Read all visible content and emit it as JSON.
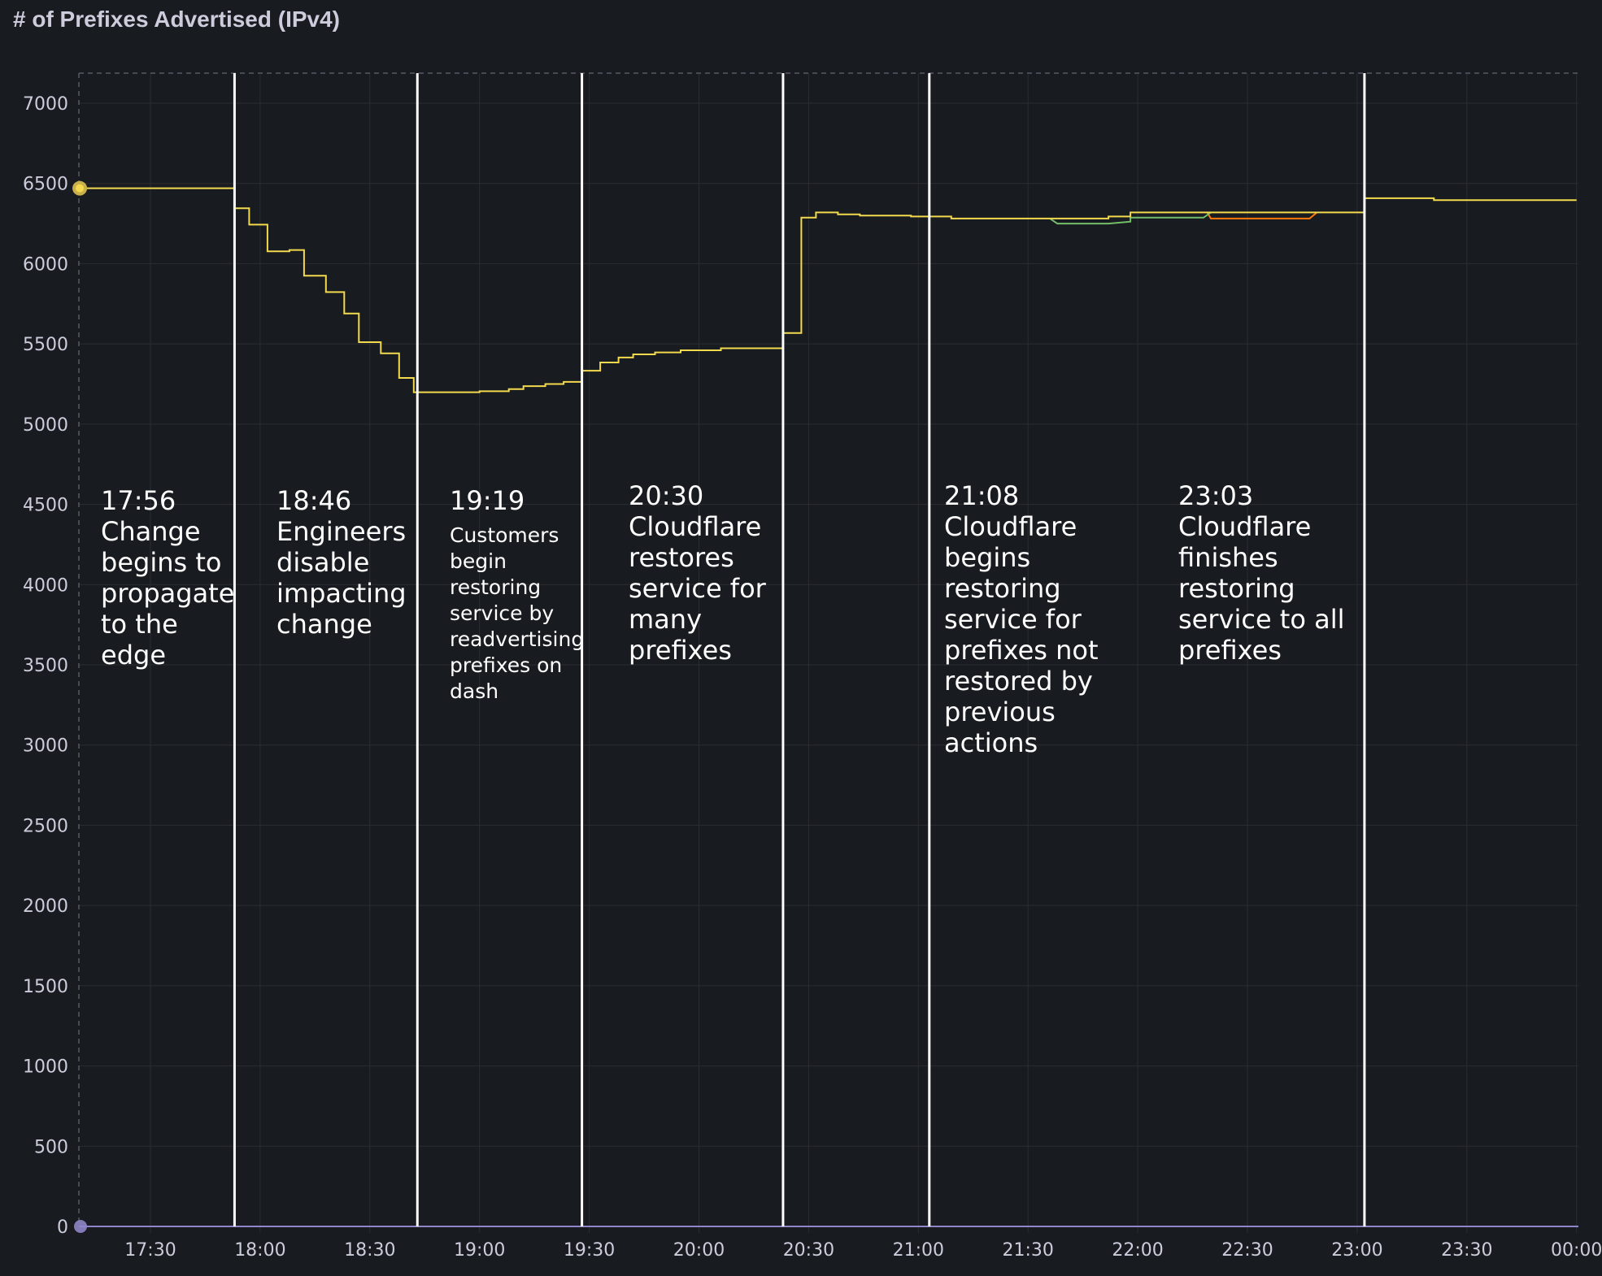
{
  "chart_data": {
    "type": "line",
    "title": "# of Prefixes Advertised (IPv4)",
    "xlabel": "",
    "ylabel": "",
    "ylim": [
      0,
      7200
    ],
    "xlim": [
      "17:10",
      "00:00"
    ],
    "grid": true,
    "y_ticks": [
      "0",
      "500",
      "1000",
      "1500",
      "2000",
      "2500",
      "3000",
      "3500",
      "4000",
      "4500",
      "5000",
      "5500",
      "6000",
      "6500",
      "7000"
    ],
    "x_ticks": [
      "17:30",
      "18:00",
      "18:30",
      "19:00",
      "19:30",
      "20:00",
      "20:30",
      "21:00",
      "21:30",
      "22:00",
      "22:30",
      "23:00",
      "23:30",
      "00:00"
    ],
    "series": [
      {
        "color": "#f2d94e",
        "points": [
          [
            "17:10",
            6470
          ],
          [
            "17:53",
            6470
          ],
          [
            "17:53",
            6345
          ],
          [
            "17:57",
            6345
          ],
          [
            "17:57",
            6243
          ],
          [
            "18:02",
            6243
          ],
          [
            "18:02",
            6077
          ],
          [
            "18:08",
            6077
          ],
          [
            "18:08",
            6085
          ],
          [
            "18:12",
            6085
          ],
          [
            "18:12",
            5925
          ],
          [
            "18:18",
            5925
          ],
          [
            "18:18",
            5823
          ],
          [
            "18:23",
            5823
          ],
          [
            "18:23",
            5689
          ],
          [
            "18:27",
            5689
          ],
          [
            "18:27",
            5511
          ],
          [
            "18:33",
            5511
          ],
          [
            "18:33",
            5441
          ],
          [
            "18:38",
            5441
          ],
          [
            "18:38",
            5288
          ],
          [
            "18:42",
            5288
          ],
          [
            "18:42",
            5199
          ],
          [
            "19:00",
            5199
          ],
          [
            "19:00",
            5205
          ],
          [
            "19:08",
            5205
          ],
          [
            "19:08",
            5218
          ],
          [
            "19:12",
            5218
          ],
          [
            "19:12",
            5237
          ],
          [
            "19:18",
            5237
          ],
          [
            "19:18",
            5250
          ],
          [
            "19:23",
            5250
          ],
          [
            "19:23",
            5263
          ],
          [
            "19:28",
            5263
          ],
          [
            "19:28",
            5333
          ],
          [
            "19:33",
            5333
          ],
          [
            "19:33",
            5384
          ],
          [
            "19:38",
            5384
          ],
          [
            "19:38",
            5415
          ],
          [
            "19:42",
            5415
          ],
          [
            "19:42",
            5435
          ],
          [
            "19:48",
            5435
          ],
          [
            "19:48",
            5447
          ],
          [
            "19:55",
            5447
          ],
          [
            "19:55",
            5460
          ],
          [
            "20:06",
            5460
          ],
          [
            "20:06",
            5473
          ],
          [
            "20:23",
            5473
          ],
          [
            "20:23",
            5568
          ],
          [
            "20:28",
            5568
          ],
          [
            "20:28",
            6287
          ],
          [
            "20:32",
            6287
          ],
          [
            "20:32",
            6319
          ],
          [
            "20:38",
            6319
          ],
          [
            "20:38",
            6307
          ],
          [
            "20:44",
            6307
          ],
          [
            "20:44",
            6300
          ],
          [
            "20:58",
            6300
          ],
          [
            "20:58",
            6294
          ],
          [
            "21:09",
            6294
          ],
          [
            "21:09",
            6281
          ],
          [
            "21:52",
            6281
          ],
          [
            "21:52",
            6294
          ],
          [
            "21:58",
            6294
          ],
          [
            "21:58",
            6319
          ],
          [
            "23:02",
            6319
          ],
          [
            "23:02",
            6408
          ],
          [
            "23:21",
            6408
          ],
          [
            "23:21",
            6396
          ],
          [
            "00:00",
            6396
          ]
        ]
      },
      {
        "color": "#73bf69",
        "points": [
          [
            "21:36",
            6281
          ],
          [
            "21:38",
            6250
          ],
          [
            "21:52",
            6250
          ],
          [
            "21:58",
            6262
          ],
          [
            "21:58",
            6287
          ],
          [
            "22:18",
            6287
          ],
          [
            "22:20",
            6319
          ]
        ]
      },
      {
        "color": "#ff780a",
        "points": [
          [
            "22:19",
            6319
          ],
          [
            "22:20",
            6281
          ],
          [
            "22:47",
            6281
          ],
          [
            "22:49",
            6319
          ]
        ]
      }
    ],
    "bottom_series": {
      "color": "#8f86c9",
      "value": 0
    },
    "annotations": [
      {
        "at": "17:53",
        "lines": [
          "17:56",
          "Change",
          "begins to",
          "propagate",
          "to the",
          "edge"
        ],
        "small": false
      },
      {
        "at": "18:43",
        "lines": [
          "18:46",
          "Engineers",
          "disable",
          "impacting",
          "change"
        ],
        "small": false
      },
      {
        "at": "19:28",
        "lines": [
          "19:19",
          "Customers",
          "begin",
          "restoring",
          "service by",
          "readvertising",
          "prefixes on",
          "dash"
        ],
        "small": true
      },
      {
        "at": "20:23",
        "lines": [
          "20:30",
          "Cloudflare",
          "restores",
          "service for",
          "many",
          "prefixes"
        ],
        "small": false
      },
      {
        "at": "21:03",
        "lines": [
          "21:08",
          "Cloudflare",
          "begins",
          "restoring",
          "service for",
          "prefixes not",
          "restored by",
          "previous",
          "actions"
        ],
        "small": false
      },
      {
        "at": "23:02",
        "lines": [
          "23:03",
          "Cloudflare",
          "finishes",
          "restoring",
          "service to all",
          "prefixes"
        ],
        "small": false
      }
    ]
  }
}
